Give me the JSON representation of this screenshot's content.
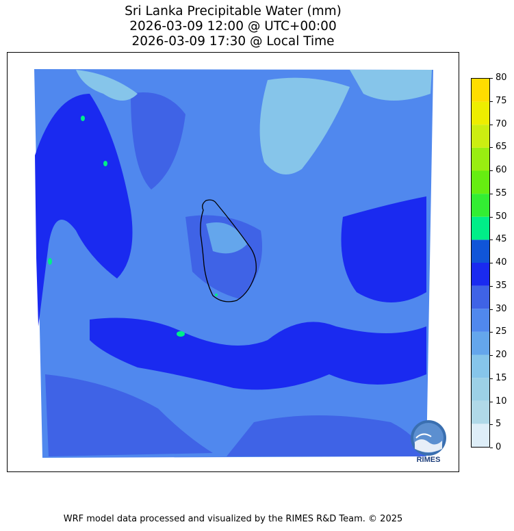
{
  "title": {
    "line1": "Sri Lanka Precipitable Water (mm)",
    "line2": "2026-03-09 12:00 @ UTC+00:00",
    "line3": "2026-03-09 17:30 @ Local Time"
  },
  "colorbar": {
    "ticks": [
      "0",
      "5",
      "10",
      "15",
      "20",
      "25",
      "30",
      "35",
      "40",
      "45",
      "50",
      "55",
      "60",
      "65",
      "70",
      "75",
      "80"
    ],
    "colors": [
      "#deeef8",
      "#b0d9e8",
      "#9cd0e6",
      "#86c5ea",
      "#64a6ec",
      "#5088ee",
      "#3f63e6",
      "#1a2af0",
      "#1055d8",
      "#00ee88",
      "#33ee33",
      "#66ee11",
      "#99ee11",
      "#ccee11",
      "#eeee00",
      "#ffdd00"
    ]
  },
  "map": {
    "region": "Sri Lanka",
    "background_color": "#4b7be6",
    "outline_color": "#000000"
  },
  "logo": {
    "text": "RIMES",
    "arc_text": "Hazard and Weather"
  },
  "footer": {
    "credit": "WRF model data processed and visualized by the RIMES R&D Team. © 2025"
  }
}
